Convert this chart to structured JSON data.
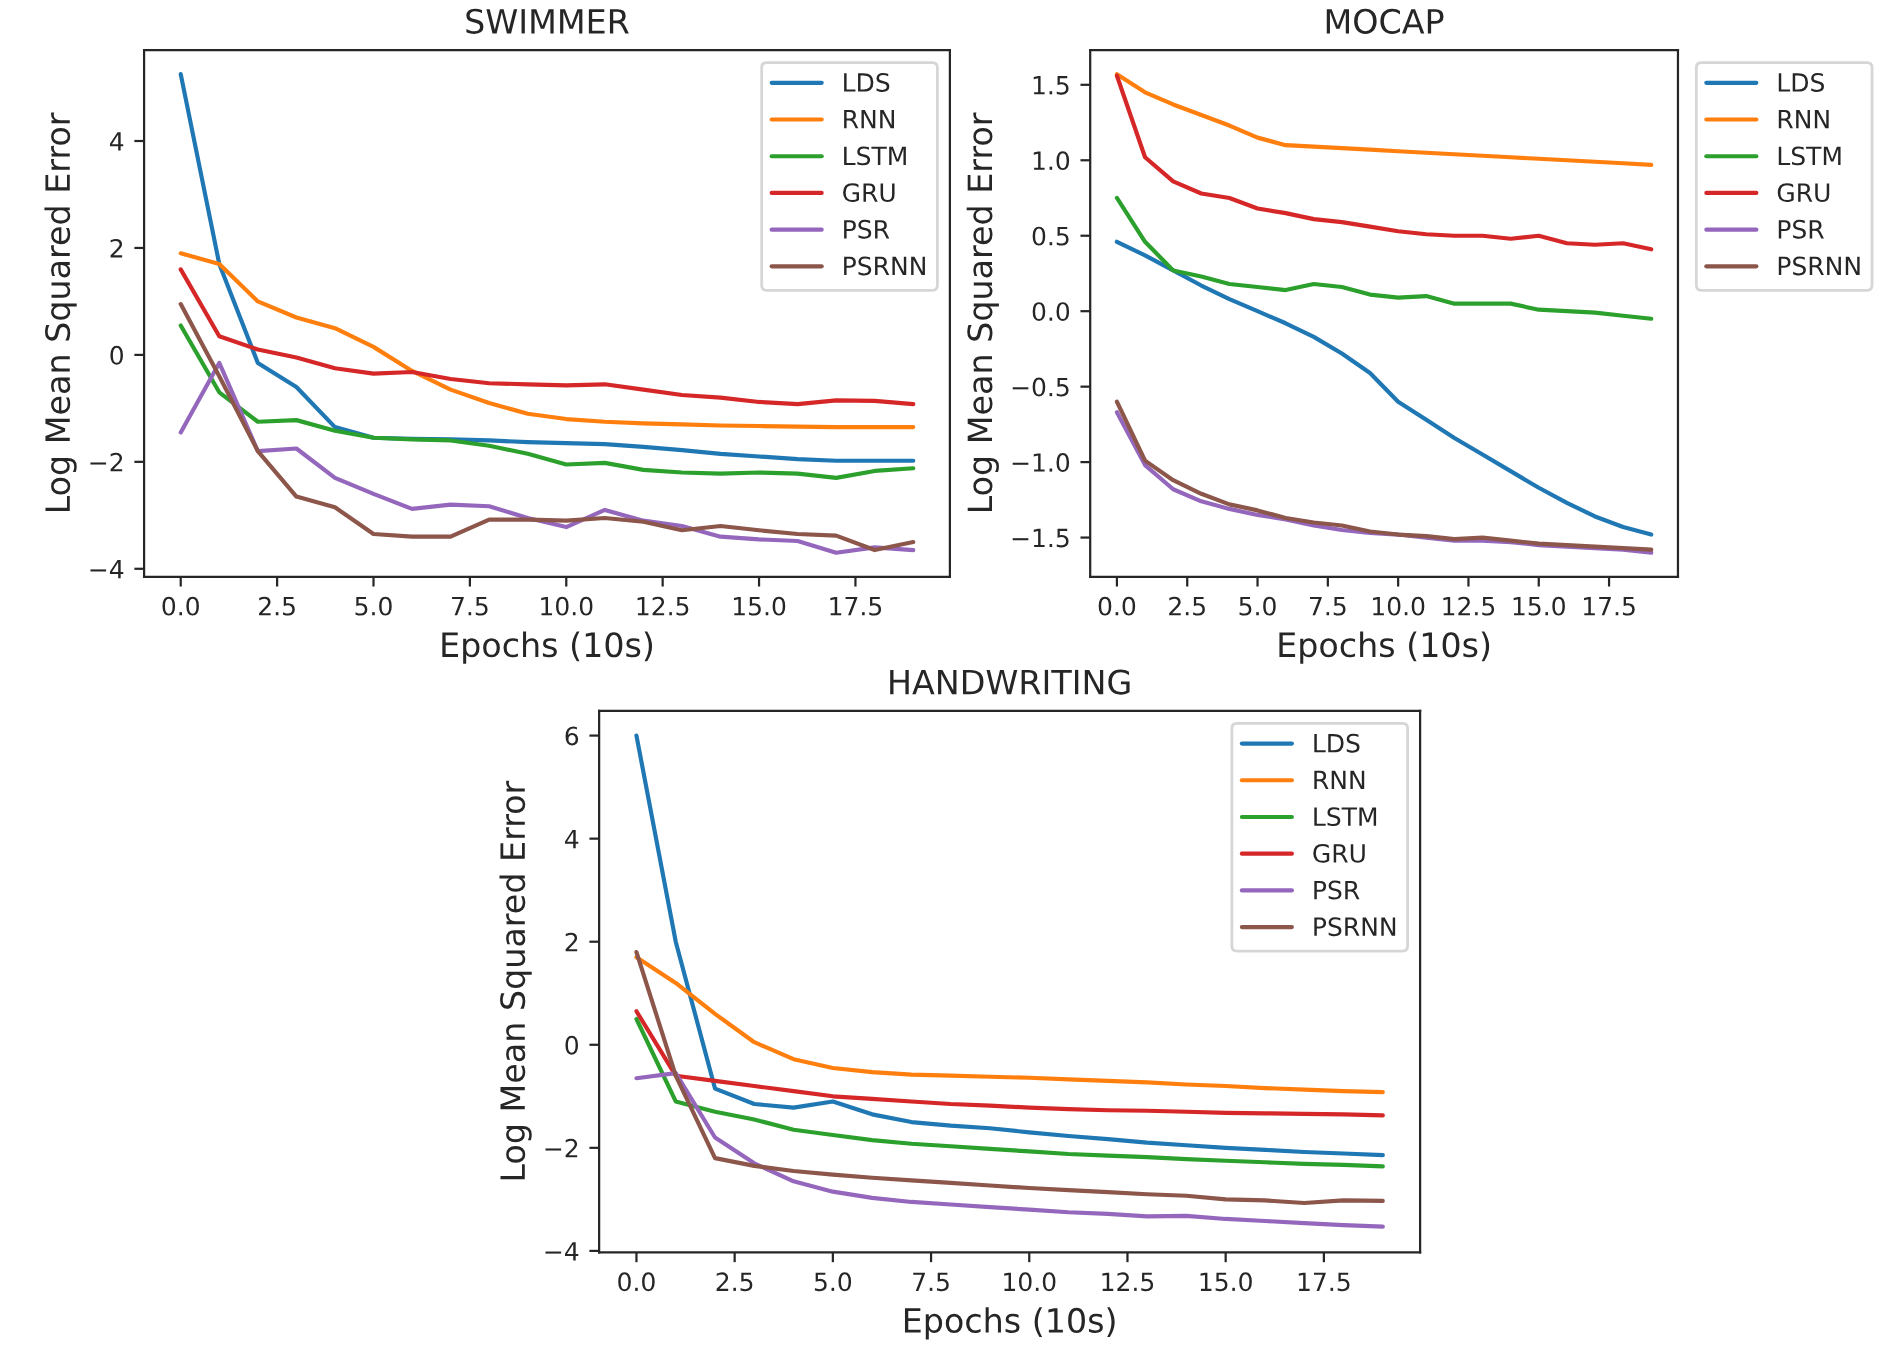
{
  "chart_data": [
    {
      "type": "line",
      "title": "SWIMMER",
      "xlabel": "Epochs (10s)",
      "ylabel": "Log Mean Squared Error",
      "legend": "top right",
      "grid": false,
      "x": [
        0,
        1,
        2,
        3,
        4,
        5,
        6,
        7,
        8,
        9,
        10,
        11,
        12,
        13,
        14,
        15,
        16,
        17,
        18,
        19
      ],
      "xlim": [
        -0.95,
        19.95
      ],
      "ylim": [
        -4.15,
        5.7
      ],
      "xticks": [
        {
          "value": 0,
          "label": "0.0"
        },
        {
          "value": 2.5,
          "label": "2.5"
        },
        {
          "value": 5,
          "label": "5.0"
        },
        {
          "value": 7.5,
          "label": "7.5"
        },
        {
          "value": 10,
          "label": "10.0"
        },
        {
          "value": 12.5,
          "label": "12.5"
        },
        {
          "value": 15,
          "label": "15.0"
        },
        {
          "value": 17.5,
          "label": "17.5"
        }
      ],
      "yticks": [
        {
          "value": -4,
          "label": "−4"
        },
        {
          "value": -2,
          "label": "−2"
        },
        0,
        2,
        4
      ],
      "series": [
        {
          "name": "LDS",
          "color": "#1f77b4",
          "values": [
            5.25,
            1.7,
            -0.15,
            -0.6,
            -1.35,
            -1.55,
            -1.57,
            -1.58,
            -1.6,
            -1.63,
            -1.65,
            -1.67,
            -1.72,
            -1.78,
            -1.85,
            -1.9,
            -1.95,
            -1.98,
            -1.98,
            -1.98
          ]
        },
        {
          "name": "RNN",
          "color": "#ff7f0e",
          "values": [
            1.9,
            1.7,
            1.0,
            0.7,
            0.5,
            0.15,
            -0.3,
            -0.65,
            -0.9,
            -1.1,
            -1.2,
            -1.25,
            -1.28,
            -1.3,
            -1.32,
            -1.33,
            -1.34,
            -1.35,
            -1.35,
            -1.35
          ]
        },
        {
          "name": "LSTM",
          "color": "#2ca02c",
          "values": [
            0.55,
            -0.7,
            -1.25,
            -1.22,
            -1.42,
            -1.55,
            -1.58,
            -1.6,
            -1.7,
            -1.85,
            -2.05,
            -2.02,
            -2.15,
            -2.2,
            -2.22,
            -2.2,
            -2.22,
            -2.3,
            -2.17,
            -2.12
          ]
        },
        {
          "name": "GRU",
          "color": "#d62728",
          "values": [
            1.6,
            0.35,
            0.1,
            -0.05,
            -0.25,
            -0.35,
            -0.32,
            -0.45,
            -0.53,
            -0.55,
            -0.57,
            -0.55,
            -0.65,
            -0.75,
            -0.8,
            -0.88,
            -0.92,
            -0.85,
            -0.86,
            -0.92
          ]
        },
        {
          "name": "PSR",
          "color": "#9467bd",
          "values": [
            -1.45,
            -0.15,
            -1.8,
            -1.75,
            -2.3,
            -2.6,
            -2.88,
            -2.8,
            -2.83,
            -3.05,
            -3.22,
            -2.9,
            -3.1,
            -3.2,
            -3.4,
            -3.45,
            -3.48,
            -3.7,
            -3.6,
            -3.65
          ]
        },
        {
          "name": "PSRNN",
          "color": "#8c564b",
          "values": [
            0.95,
            -0.4,
            -1.8,
            -2.65,
            -2.85,
            -3.35,
            -3.4,
            -3.4,
            -3.08,
            -3.08,
            -3.1,
            -3.05,
            -3.12,
            -3.28,
            -3.2,
            -3.28,
            -3.35,
            -3.38,
            -3.65,
            -3.5
          ]
        }
      ]
    },
    {
      "type": "line",
      "title": "MOCAP",
      "xlabel": "Epochs (10s)",
      "ylabel": "Log Mean Squared Error",
      "legend": "right",
      "grid": false,
      "x": [
        0,
        1,
        2,
        3,
        4,
        5,
        6,
        7,
        8,
        9,
        10,
        11,
        12,
        13,
        14,
        15,
        16,
        17,
        18,
        19
      ],
      "xlim": [
        -0.95,
        19.95
      ],
      "ylim": [
        -1.76,
        1.73
      ],
      "xticks": [
        {
          "value": 0,
          "label": "0.0"
        },
        {
          "value": 2.5,
          "label": "2.5"
        },
        {
          "value": 5,
          "label": "5.0"
        },
        {
          "value": 7.5,
          "label": "7.5"
        },
        {
          "value": 10,
          "label": "10.0"
        },
        {
          "value": 12.5,
          "label": "12.5"
        },
        {
          "value": 15,
          "label": "15.0"
        },
        {
          "value": 17.5,
          "label": "17.5"
        }
      ],
      "yticks": [
        {
          "value": -1.5,
          "label": "−1.5"
        },
        {
          "value": -1.0,
          "label": "−1.0"
        },
        {
          "value": -0.5,
          "label": "−0.5"
        },
        {
          "value": 0,
          "label": "0.0"
        },
        0.5,
        {
          "value": 1,
          "label": "1.0"
        },
        1.5
      ],
      "series": [
        {
          "name": "LDS",
          "color": "#1f77b4",
          "values": [
            0.46,
            0.37,
            0.27,
            0.17,
            0.08,
            0.0,
            -0.08,
            -0.17,
            -0.28,
            -0.41,
            -0.6,
            -0.72,
            -0.84,
            -0.95,
            -1.06,
            -1.17,
            -1.27,
            -1.36,
            -1.43,
            -1.48
          ]
        },
        {
          "name": "RNN",
          "color": "#ff7f0e",
          "values": [
            1.57,
            1.45,
            1.37,
            1.3,
            1.23,
            1.15,
            1.1,
            1.09,
            1.08,
            1.07,
            1.06,
            1.05,
            1.04,
            1.03,
            1.02,
            1.01,
            1.0,
            0.99,
            0.98,
            0.97
          ]
        },
        {
          "name": "LSTM",
          "color": "#2ca02c",
          "values": [
            0.75,
            0.46,
            0.27,
            0.23,
            0.18,
            0.16,
            0.14,
            0.18,
            0.16,
            0.11,
            0.09,
            0.1,
            0.05,
            0.05,
            0.05,
            0.01,
            0.0,
            -0.01,
            -0.03,
            -0.05
          ]
        },
        {
          "name": "GRU",
          "color": "#d62728",
          "values": [
            1.56,
            1.02,
            0.86,
            0.78,
            0.75,
            0.68,
            0.65,
            0.61,
            0.59,
            0.56,
            0.53,
            0.51,
            0.5,
            0.5,
            0.48,
            0.5,
            0.45,
            0.44,
            0.45,
            0.41
          ]
        },
        {
          "name": "PSR",
          "color": "#9467bd",
          "values": [
            -0.67,
            -1.02,
            -1.18,
            -1.26,
            -1.31,
            -1.35,
            -1.38,
            -1.42,
            -1.45,
            -1.47,
            -1.48,
            -1.5,
            -1.52,
            -1.52,
            -1.53,
            -1.55,
            -1.56,
            -1.57,
            -1.58,
            -1.6
          ]
        },
        {
          "name": "PSRNN",
          "color": "#8c564b",
          "values": [
            -0.6,
            -0.99,
            -1.12,
            -1.21,
            -1.28,
            -1.32,
            -1.37,
            -1.4,
            -1.42,
            -1.46,
            -1.48,
            -1.49,
            -1.51,
            -1.5,
            -1.52,
            -1.54,
            -1.55,
            -1.56,
            -1.57,
            -1.58
          ]
        }
      ]
    },
    {
      "type": "line",
      "title": "HANDWRITING",
      "xlabel": "Epochs (10s)",
      "ylabel": "Log Mean Squared Error",
      "legend": "top right",
      "grid": false,
      "x": [
        0,
        1,
        2,
        3,
        4,
        5,
        6,
        7,
        8,
        9,
        10,
        11,
        12,
        13,
        14,
        15,
        16,
        17,
        18,
        19
      ],
      "xlim": [
        -0.95,
        19.95
      ],
      "ylim": [
        -4.03,
        6.48
      ],
      "xticks": [
        {
          "value": 0,
          "label": "0.0"
        },
        {
          "value": 2.5,
          "label": "2.5"
        },
        {
          "value": 5,
          "label": "5.0"
        },
        {
          "value": 7.5,
          "label": "7.5"
        },
        {
          "value": 10,
          "label": "10.0"
        },
        {
          "value": 12.5,
          "label": "12.5"
        },
        {
          "value": 15,
          "label": "15.0"
        },
        {
          "value": 17.5,
          "label": "17.5"
        }
      ],
      "yticks": [
        {
          "value": -4,
          "label": "−4"
        },
        {
          "value": -2,
          "label": "−2"
        },
        0,
        2,
        4,
        6
      ],
      "series": [
        {
          "name": "LDS",
          "color": "#1f77b4",
          "values": [
            6.0,
            2.0,
            -0.85,
            -1.15,
            -1.22,
            -1.1,
            -1.35,
            -1.5,
            -1.57,
            -1.62,
            -1.7,
            -1.77,
            -1.83,
            -1.9,
            -1.95,
            -2.0,
            -2.04,
            -2.08,
            -2.11,
            -2.14
          ]
        },
        {
          "name": "RNN",
          "color": "#ff7f0e",
          "values": [
            1.7,
            1.2,
            0.6,
            0.05,
            -0.28,
            -0.45,
            -0.53,
            -0.58,
            -0.6,
            -0.62,
            -0.64,
            -0.67,
            -0.7,
            -0.73,
            -0.77,
            -0.8,
            -0.84,
            -0.87,
            -0.9,
            -0.92
          ]
        },
        {
          "name": "LSTM",
          "color": "#2ca02c",
          "values": [
            0.5,
            -1.1,
            -1.3,
            -1.45,
            -1.65,
            -1.75,
            -1.85,
            -1.92,
            -1.97,
            -2.02,
            -2.07,
            -2.12,
            -2.15,
            -2.18,
            -2.22,
            -2.25,
            -2.28,
            -2.31,
            -2.33,
            -2.36
          ]
        },
        {
          "name": "GRU",
          "color": "#d62728",
          "values": [
            0.65,
            -0.6,
            -0.7,
            -0.8,
            -0.9,
            -1.0,
            -1.05,
            -1.1,
            -1.15,
            -1.18,
            -1.22,
            -1.25,
            -1.27,
            -1.28,
            -1.3,
            -1.32,
            -1.33,
            -1.34,
            -1.35,
            -1.37
          ]
        },
        {
          "name": "PSR",
          "color": "#9467bd",
          "values": [
            -0.65,
            -0.55,
            -1.8,
            -2.3,
            -2.65,
            -2.85,
            -2.97,
            -3.05,
            -3.1,
            -3.15,
            -3.2,
            -3.25,
            -3.28,
            -3.33,
            -3.32,
            -3.38,
            -3.42,
            -3.46,
            -3.5,
            -3.53
          ]
        },
        {
          "name": "PSRNN",
          "color": "#8c564b",
          "values": [
            1.8,
            -0.6,
            -2.2,
            -2.35,
            -2.45,
            -2.52,
            -2.58,
            -2.63,
            -2.68,
            -2.73,
            -2.78,
            -2.82,
            -2.86,
            -2.9,
            -2.93,
            -3.0,
            -3.02,
            -3.07,
            -3.02,
            -3.03
          ]
        }
      ]
    }
  ]
}
